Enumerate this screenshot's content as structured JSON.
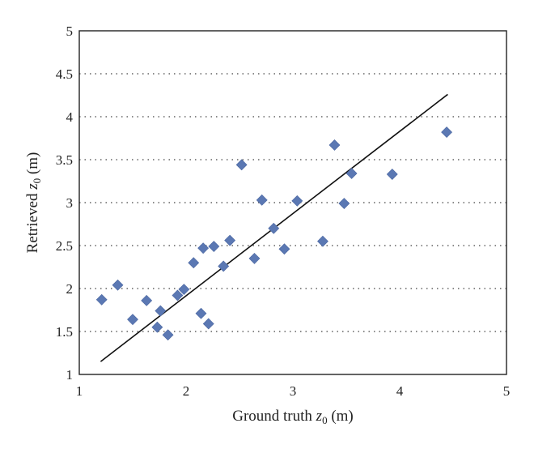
{
  "chart_data": {
    "type": "scatter",
    "xlabel": "Ground truth z0 (m)",
    "ylabel": "Retrieved z0 (m)",
    "xlabel_parts": {
      "pre": "Ground truth ",
      "var": "z",
      "sub": "0",
      "post": " (m)"
    },
    "ylabel_parts": {
      "pre": "Retrieved ",
      "var": "z",
      "sub": "0",
      "post": " (m)"
    },
    "xlim": [
      1,
      5
    ],
    "ylim": [
      1,
      5
    ],
    "xticks": [
      "1",
      "2",
      "3",
      "4",
      "5"
    ],
    "yticks": [
      "1",
      "1.5",
      "2",
      "2.5",
      "3",
      "3.5",
      "4",
      "4.5",
      "5"
    ],
    "grid": "horizontal dotted",
    "marker_color": "#5b78b3",
    "series": [
      {
        "marker": "diamond",
        "points": [
          [
            1.21,
            1.87
          ],
          [
            1.36,
            2.04
          ],
          [
            1.5,
            1.64
          ],
          [
            1.63,
            1.86
          ],
          [
            1.73,
            1.55
          ],
          [
            1.76,
            1.74
          ],
          [
            1.83,
            1.46
          ],
          [
            1.92,
            1.92
          ],
          [
            1.98,
            1.99
          ],
          [
            2.07,
            2.3
          ],
          [
            2.14,
            1.71
          ],
          [
            2.16,
            2.47
          ],
          [
            2.21,
            1.59
          ],
          [
            2.26,
            2.49
          ],
          [
            2.35,
            2.26
          ],
          [
            2.41,
            2.56
          ],
          [
            2.52,
            3.44
          ],
          [
            2.64,
            2.35
          ],
          [
            2.71,
            3.03
          ],
          [
            2.82,
            2.7
          ],
          [
            2.92,
            2.46
          ],
          [
            3.04,
            3.02
          ],
          [
            3.28,
            2.55
          ],
          [
            3.39,
            3.67
          ],
          [
            3.48,
            2.99
          ],
          [
            3.55,
            3.34
          ],
          [
            3.93,
            3.33
          ],
          [
            4.44,
            3.82
          ]
        ]
      }
    ],
    "fit_line": {
      "x": [
        1.2,
        4.45
      ],
      "y": [
        1.15,
        4.26
      ]
    }
  }
}
